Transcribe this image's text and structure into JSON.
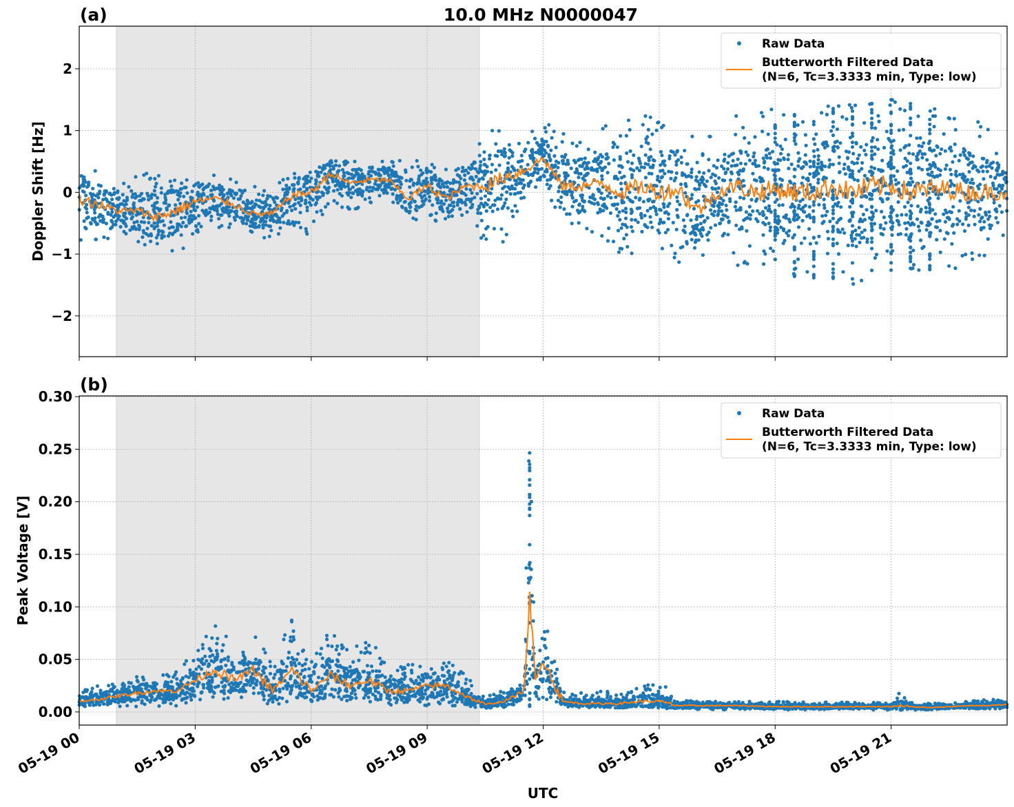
{
  "title": "10.0 MHz N0000047",
  "colors": {
    "raw": "#1f77b4",
    "filtered": "#ff7f0e",
    "shade": "#e6e6e6"
  },
  "xaxis": {
    "label": "UTC",
    "range_hours": [
      0,
      24
    ],
    "ticks": [
      0,
      3,
      6,
      9,
      12,
      15,
      18,
      21
    ],
    "tick_labels": [
      "05-19 00",
      "05-19 03",
      "05-19 06",
      "05-19 09",
      "05-19 12",
      "05-19 15",
      "05-19 18",
      "05-19 21"
    ]
  },
  "legend": {
    "raw": "Raw Data",
    "filtered_line1": "Butterworth Filtered Data",
    "filtered_line2": "(N=6, Tc=3.3333 min, Type: low)",
    "placement": "top-right"
  },
  "chart_data": [
    {
      "type": "scatter+line",
      "panel_label": "(a)",
      "ylabel": "Doppler Shift [Hz]",
      "ylim": [
        -2.66,
        2.69
      ],
      "yticks": [
        -2,
        -1,
        0,
        1,
        2
      ],
      "ytick_labels": [
        "−2",
        "−1",
        "0",
        "1",
        "2"
      ],
      "grid": true,
      "shaded_interval_hours": [
        0.96,
        10.35
      ],
      "series_note_columns": [
        "hour",
        "raw_min",
        "raw_max",
        "filtered"
      ],
      "series": [
        [
          0,
          -0.9,
          0.6,
          -0.1
        ],
        [
          0.5,
          -0.9,
          0.3,
          -0.2
        ],
        [
          1,
          -0.7,
          0.2,
          -0.3
        ],
        [
          1.5,
          -0.8,
          0.3,
          -0.3
        ],
        [
          2,
          -1.0,
          0.4,
          -0.4
        ],
        [
          2.5,
          -1.1,
          0.3,
          -0.3
        ],
        [
          3,
          -0.7,
          0.3,
          -0.15
        ],
        [
          3.5,
          -0.6,
          0.3,
          -0.1
        ],
        [
          4,
          -0.6,
          0.2,
          -0.2
        ],
        [
          4.5,
          -0.7,
          0.1,
          -0.35
        ],
        [
          5,
          -0.8,
          0.1,
          -0.35
        ],
        [
          5.5,
          -0.6,
          0.3,
          -0.05
        ],
        [
          6,
          -0.7,
          0.4,
          0.0
        ],
        [
          6.5,
          -0.2,
          0.55,
          0.3
        ],
        [
          7,
          -0.3,
          0.5,
          0.15
        ],
        [
          7.5,
          -0.2,
          0.5,
          0.2
        ],
        [
          8,
          -0.2,
          0.6,
          0.2
        ],
        [
          8.5,
          -0.5,
          0.5,
          -0.1
        ],
        [
          9,
          -0.5,
          0.6,
          0.1
        ],
        [
          9.5,
          -0.5,
          0.4,
          -0.1
        ],
        [
          10,
          -0.6,
          0.5,
          0.1
        ],
        [
          10.5,
          -0.9,
          1.0,
          0.1
        ],
        [
          11,
          -0.8,
          1.0,
          0.25
        ],
        [
          11.5,
          -0.3,
          0.9,
          0.35
        ],
        [
          12,
          0.0,
          1.2,
          0.55
        ],
        [
          12.5,
          -0.5,
          1.0,
          0.1
        ],
        [
          13,
          -0.6,
          1.0,
          0.1
        ],
        [
          13.5,
          -0.7,
          1.1,
          0.15
        ],
        [
          14,
          -1.0,
          1.2,
          0.0
        ],
        [
          14.5,
          -1.0,
          1.3,
          0.1
        ],
        [
          15,
          -1.1,
          1.2,
          0.0
        ],
        [
          15.5,
          -1.2,
          1.2,
          0.05
        ],
        [
          16,
          -1.2,
          0.8,
          -0.3
        ],
        [
          16.5,
          -0.9,
          1.0,
          0.0
        ],
        [
          17,
          -1.2,
          1.3,
          0.1
        ],
        [
          17.5,
          -1.3,
          1.3,
          0.0
        ],
        [
          18,
          -1.3,
          1.4,
          0.05
        ],
        [
          18.5,
          -1.4,
          1.3,
          0.0
        ],
        [
          19,
          -1.4,
          1.4,
          0.0
        ],
        [
          19.5,
          -1.4,
          1.4,
          0.1
        ],
        [
          20,
          -1.5,
          1.5,
          0.0
        ],
        [
          20.5,
          -1.4,
          1.5,
          0.1
        ],
        [
          21,
          -1.3,
          1.5,
          0.1
        ],
        [
          21.5,
          -1.3,
          1.5,
          0.0
        ],
        [
          22,
          -1.3,
          1.4,
          0.05
        ],
        [
          22.5,
          -1.3,
          1.3,
          0.05
        ],
        [
          23,
          -1.2,
          1.2,
          0.0
        ],
        [
          23.5,
          -1.0,
          1.1,
          0.0
        ],
        [
          24,
          -0.7,
          0.6,
          0.0
        ]
      ]
    },
    {
      "type": "scatter+line",
      "panel_label": "(b)",
      "ylabel": "Peak Voltage [V]",
      "ylim": [
        -0.0125,
        0.3007
      ],
      "yticks": [
        0,
        0.05,
        0.1,
        0.15,
        0.2,
        0.25,
        0.3
      ],
      "ytick_labels": [
        "0.00",
        "0.05",
        "0.10",
        "0.15",
        "0.20",
        "0.25",
        "0.30"
      ],
      "grid": true,
      "shaded_interval_hours": [
        0.96,
        10.35
      ],
      "series_note_columns": [
        "hour",
        "raw_min",
        "raw_max",
        "filtered"
      ],
      "series": [
        [
          0,
          0.005,
          0.02,
          0.01
        ],
        [
          0.5,
          0.005,
          0.025,
          0.012
        ],
        [
          1,
          0.005,
          0.03,
          0.015
        ],
        [
          1.5,
          0.005,
          0.035,
          0.018
        ],
        [
          2,
          0.005,
          0.035,
          0.02
        ],
        [
          2.5,
          0.005,
          0.04,
          0.02
        ],
        [
          3,
          0.01,
          0.065,
          0.03
        ],
        [
          3.5,
          0.01,
          0.09,
          0.04
        ],
        [
          4,
          0.01,
          0.06,
          0.03
        ],
        [
          4.5,
          0.01,
          0.08,
          0.04
        ],
        [
          5,
          0.005,
          0.05,
          0.02
        ],
        [
          5.5,
          0.01,
          0.09,
          0.04
        ],
        [
          6,
          0.01,
          0.05,
          0.02
        ],
        [
          6.5,
          0.01,
          0.085,
          0.035
        ],
        [
          7,
          0.01,
          0.06,
          0.025
        ],
        [
          7.5,
          0.01,
          0.07,
          0.03
        ],
        [
          8,
          0.005,
          0.05,
          0.02
        ],
        [
          8.5,
          0.005,
          0.045,
          0.02
        ],
        [
          9,
          0.005,
          0.05,
          0.025
        ],
        [
          9.5,
          0.005,
          0.05,
          0.025
        ],
        [
          10,
          0.005,
          0.035,
          0.015
        ],
        [
          10.5,
          0.003,
          0.015,
          0.007
        ],
        [
          11,
          0.003,
          0.025,
          0.01
        ],
        [
          11.5,
          0.005,
          0.035,
          0.02
        ],
        [
          11.65,
          0.005,
          0.28,
          0.1
        ],
        [
          11.8,
          0.01,
          0.04,
          0.03
        ],
        [
          12,
          0.01,
          0.1,
          0.05
        ],
        [
          12.5,
          0.005,
          0.02,
          0.01
        ],
        [
          13,
          0.004,
          0.018,
          0.008
        ],
        [
          13.5,
          0.004,
          0.02,
          0.008
        ],
        [
          14,
          0.004,
          0.02,
          0.008
        ],
        [
          14.5,
          0.004,
          0.025,
          0.01
        ],
        [
          15,
          0.004,
          0.03,
          0.01
        ],
        [
          15.5,
          0.002,
          0.012,
          0.006
        ],
        [
          16,
          0.002,
          0.01,
          0.006
        ],
        [
          17,
          0.002,
          0.01,
          0.006
        ],
        [
          18,
          0.002,
          0.01,
          0.005
        ],
        [
          19,
          0.002,
          0.01,
          0.005
        ],
        [
          20,
          0.002,
          0.009,
          0.005
        ],
        [
          21,
          0.002,
          0.009,
          0.005
        ],
        [
          21.2,
          0.002,
          0.02,
          0.006
        ],
        [
          21.5,
          0.002,
          0.009,
          0.005
        ],
        [
          22,
          0.002,
          0.008,
          0.004
        ],
        [
          23,
          0.003,
          0.01,
          0.006
        ],
        [
          23.5,
          0.003,
          0.012,
          0.006
        ],
        [
          24,
          0.003,
          0.014,
          0.007
        ]
      ]
    }
  ]
}
